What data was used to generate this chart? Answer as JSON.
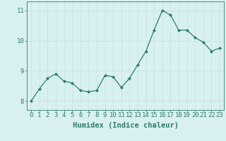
{
  "x": [
    0,
    1,
    2,
    3,
    4,
    5,
    6,
    7,
    8,
    9,
    10,
    11,
    12,
    13,
    14,
    15,
    16,
    17,
    18,
    19,
    20,
    21,
    22,
    23
  ],
  "y": [
    8.0,
    8.4,
    8.75,
    8.9,
    8.65,
    8.6,
    8.35,
    8.3,
    8.35,
    8.85,
    8.8,
    8.45,
    8.75,
    9.2,
    9.65,
    10.35,
    11.0,
    10.85,
    10.35,
    10.35,
    10.1,
    9.95,
    9.65,
    9.75
  ],
  "line_color": "#2e7d6e",
  "marker": "D",
  "marker_size": 2.0,
  "bg_color": "#d8f0f0",
  "grid_color": "#b8dada",
  "xlabel": "Humidex (Indice chaleur)",
  "xlim": [
    -0.5,
    23.5
  ],
  "ylim": [
    7.7,
    11.3
  ],
  "yticks": [
    8,
    9,
    10,
    11
  ],
  "xtick_labels": [
    "0",
    "1",
    "2",
    "3",
    "4",
    "5",
    "6",
    "7",
    "8",
    "9",
    "10",
    "11",
    "12",
    "13",
    "14",
    "15",
    "16",
    "17",
    "18",
    "19",
    "20",
    "21",
    "22",
    "23"
  ],
  "tick_color": "#2e7d6e",
  "label_color": "#2e7d6e",
  "font_size_xlabel": 7.5,
  "font_size_tick": 6.5,
  "lw": 0.9
}
